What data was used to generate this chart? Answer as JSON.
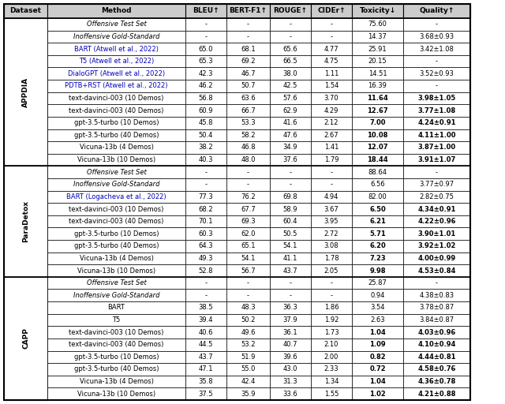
{
  "header": [
    "Dataset",
    "Method",
    "BLEU↑",
    "BERT-F1↑",
    "ROUGE↑",
    "CIDEr↑",
    "Toxicity↓",
    "Quality↑"
  ],
  "sections": [
    {
      "dataset": "APPDIA",
      "rows": [
        {
          "method": "Offensive Test Set",
          "italic": true,
          "cite": false,
          "bleu": "-",
          "bert": "-",
          "rouge": "-",
          "cider": "-",
          "toxicity": "75.60",
          "quality": "-",
          "bold_tox": false,
          "bold_qual": false
        },
        {
          "method": "Inoffensive Gold-Standard",
          "italic": true,
          "cite": false,
          "bleu": "-",
          "bert": "-",
          "rouge": "-",
          "cider": "-",
          "toxicity": "14.37",
          "quality": "3.68±0.93",
          "bold_tox": false,
          "bold_qual": false
        },
        {
          "method": "BART (Atwell et al., 2022)",
          "italic": false,
          "cite": true,
          "bleu": "65.0",
          "bert": "68.1",
          "rouge": "65.6",
          "cider": "4.77",
          "toxicity": "25.91",
          "quality": "3.42±1.08",
          "bold_tox": false,
          "bold_qual": false
        },
        {
          "method": "T5 (Atwell et al., 2022)",
          "italic": false,
          "cite": true,
          "bleu": "65.3",
          "bert": "69.2",
          "rouge": "66.5",
          "cider": "4.75",
          "toxicity": "20.15",
          "quality": "-",
          "bold_tox": false,
          "bold_qual": false
        },
        {
          "method": "DialoGPT (Atwell et al., 2022)",
          "italic": false,
          "cite": true,
          "bleu": "42.3",
          "bert": "46.7",
          "rouge": "38.0",
          "cider": "1.11",
          "toxicity": "14.51",
          "quality": "3.52±0.93",
          "bold_tox": false,
          "bold_qual": false
        },
        {
          "method": "PDTB+RST (Atwell et al., 2022)",
          "italic": false,
          "cite": true,
          "bleu": "46.2",
          "bert": "50.7",
          "rouge": "42.5",
          "cider": "1.54",
          "toxicity": "16.39",
          "quality": "-",
          "bold_tox": false,
          "bold_qual": false
        },
        {
          "method": "text-davinci-003 (10 Demos)",
          "italic": false,
          "cite": false,
          "bleu": "56.8",
          "bert": "63.6",
          "rouge": "57.6",
          "cider": "3.70",
          "toxicity": "11.64",
          "quality": "3.98±1.05",
          "bold_tox": true,
          "bold_qual": true
        },
        {
          "method": "text-davinci-003 (40 Demos)",
          "italic": false,
          "cite": false,
          "bleu": "60.9",
          "bert": "66.7",
          "rouge": "62.9",
          "cider": "4.29",
          "toxicity": "12.67",
          "quality": "3.77±1.08",
          "bold_tox": true,
          "bold_qual": true
        },
        {
          "method": "gpt-3.5-turbo (10 Demos)",
          "italic": false,
          "cite": false,
          "bleu": "45.8",
          "bert": "53.3",
          "rouge": "41.6",
          "cider": "2.12",
          "toxicity": "7.00",
          "quality": "4.24±0.91",
          "bold_tox": true,
          "bold_qual": true
        },
        {
          "method": "gpt-3.5-turbo (40 Demos)",
          "italic": false,
          "cite": false,
          "bleu": "50.4",
          "bert": "58.2",
          "rouge": "47.6",
          "cider": "2.67",
          "toxicity": "10.08",
          "quality": "4.11±1.00",
          "bold_tox": true,
          "bold_qual": true
        },
        {
          "method": "Vicuna-13b (4 Demos)",
          "italic": false,
          "cite": false,
          "bleu": "38.2",
          "bert": "46.8",
          "rouge": "34.9",
          "cider": "1.41",
          "toxicity": "12.07",
          "quality": "3.87±1.00",
          "bold_tox": true,
          "bold_qual": true
        },
        {
          "method": "Vicuna-13b (10 Demos)",
          "italic": false,
          "cite": false,
          "bleu": "40.3",
          "bert": "48.0",
          "rouge": "37.6",
          "cider": "1.79",
          "toxicity": "18.44",
          "quality": "3.91±1.07",
          "bold_tox": true,
          "bold_qual": true
        }
      ]
    },
    {
      "dataset": "ParaDetox",
      "rows": [
        {
          "method": "Offensive Test Set",
          "italic": true,
          "cite": false,
          "bleu": "-",
          "bert": "-",
          "rouge": "-",
          "cider": "-",
          "toxicity": "88.64",
          "quality": "-",
          "bold_tox": false,
          "bold_qual": false
        },
        {
          "method": "Inoffensive Gold-Standard",
          "italic": true,
          "cite": false,
          "bleu": "-",
          "bert": "-",
          "rouge": "-",
          "cider": "-",
          "toxicity": "6.56",
          "quality": "3.77±0.97",
          "bold_tox": false,
          "bold_qual": false
        },
        {
          "method": "BART (Logacheva et al., 2022)",
          "italic": false,
          "cite": true,
          "bleu": "77.3",
          "bert": "76.2",
          "rouge": "69.8",
          "cider": "4.94",
          "toxicity": "82.00",
          "quality": "2.82±0.75",
          "bold_tox": false,
          "bold_qual": false
        },
        {
          "method": "text-davinci-003 (10 Demos)",
          "italic": false,
          "cite": false,
          "bleu": "68.2",
          "bert": "67.7",
          "rouge": "58.9",
          "cider": "3.67",
          "toxicity": "6.50",
          "quality": "4.34±0.91",
          "bold_tox": true,
          "bold_qual": true
        },
        {
          "method": "text-davinci-003 (40 Demos)",
          "italic": false,
          "cite": false,
          "bleu": "70.1",
          "bert": "69.3",
          "rouge": "60.4",
          "cider": "3.95",
          "toxicity": "6.21",
          "quality": "4.22±0.96",
          "bold_tox": true,
          "bold_qual": true
        },
        {
          "method": "gpt-3.5-turbo (10 Demos)",
          "italic": false,
          "cite": false,
          "bleu": "60.3",
          "bert": "62.0",
          "rouge": "50.5",
          "cider": "2.72",
          "toxicity": "5.71",
          "quality": "3.90±1.01",
          "bold_tox": true,
          "bold_qual": true
        },
        {
          "method": "gpt-3.5-turbo (40 Demos)",
          "italic": false,
          "cite": false,
          "bleu": "64.3",
          "bert": "65.1",
          "rouge": "54.1",
          "cider": "3.08",
          "toxicity": "6.20",
          "quality": "3.92±1.02",
          "bold_tox": true,
          "bold_qual": true
        },
        {
          "method": "Vicuna-13b (4 Demos)",
          "italic": false,
          "cite": false,
          "bleu": "49.3",
          "bert": "54.1",
          "rouge": "41.1",
          "cider": "1.78",
          "toxicity": "7.23",
          "quality": "4.00±0.99",
          "bold_tox": true,
          "bold_qual": true
        },
        {
          "method": "Vicuna-13b (10 Demos)",
          "italic": false,
          "cite": false,
          "bleu": "52.8",
          "bert": "56.7",
          "rouge": "43.7",
          "cider": "2.05",
          "toxicity": "9.98",
          "quality": "4.53±0.84",
          "bold_tox": true,
          "bold_qual": true
        }
      ]
    },
    {
      "dataset": "CAPP",
      "rows": [
        {
          "method": "Offensive Test Set",
          "italic": true,
          "cite": false,
          "bleu": "-",
          "bert": "-",
          "rouge": "-",
          "cider": "-",
          "toxicity": "25.87",
          "quality": "-",
          "bold_tox": false,
          "bold_qual": false
        },
        {
          "method": "Inoffensive Gold-Standard",
          "italic": true,
          "cite": false,
          "bleu": "-",
          "bert": "-",
          "rouge": "-",
          "cider": "-",
          "toxicity": "0.94",
          "quality": "4.38±0.83",
          "bold_tox": false,
          "bold_qual": false
        },
        {
          "method": "BART",
          "italic": false,
          "cite": false,
          "bleu": "38.5",
          "bert": "48.3",
          "rouge": "36.3",
          "cider": "1.86",
          "toxicity": "3.54",
          "quality": "3.78±0.87",
          "bold_tox": false,
          "bold_qual": false
        },
        {
          "method": "T5",
          "italic": false,
          "cite": false,
          "bleu": "39.4",
          "bert": "50.2",
          "rouge": "37.9",
          "cider": "1.92",
          "toxicity": "2.63",
          "quality": "3.84±0.87",
          "bold_tox": false,
          "bold_qual": false
        },
        {
          "method": "text-davinci-003 (10 Demos)",
          "italic": false,
          "cite": false,
          "bleu": "40.6",
          "bert": "49.6",
          "rouge": "36.1",
          "cider": "1.73",
          "toxicity": "1.04",
          "quality": "4.03±0.96",
          "bold_tox": true,
          "bold_qual": true
        },
        {
          "method": "text-davinci-003 (40 Demos)",
          "italic": false,
          "cite": false,
          "bleu": "44.5",
          "bert": "53.2",
          "rouge": "40.7",
          "cider": "2.10",
          "toxicity": "1.09",
          "quality": "4.10±0.94",
          "bold_tox": true,
          "bold_qual": true
        },
        {
          "method": "gpt-3.5-turbo (10 Demos)",
          "italic": false,
          "cite": false,
          "bleu": "43.7",
          "bert": "51.9",
          "rouge": "39.6",
          "cider": "2.00",
          "toxicity": "0.82",
          "quality": "4.44±0.81",
          "bold_tox": true,
          "bold_qual": true
        },
        {
          "method": "gpt-3.5-turbo (40 Demos)",
          "italic": false,
          "cite": false,
          "bleu": "47.1",
          "bert": "55.0",
          "rouge": "43.0",
          "cider": "2.33",
          "toxicity": "0.72",
          "quality": "4.58±0.76",
          "bold_tox": true,
          "bold_qual": true
        },
        {
          "method": "Vicuna-13b (4 Demos)",
          "italic": false,
          "cite": false,
          "bleu": "35.8",
          "bert": "42.4",
          "rouge": "31.3",
          "cider": "1.34",
          "toxicity": "1.04",
          "quality": "4.36±0.78",
          "bold_tox": true,
          "bold_qual": true
        },
        {
          "method": "Vicuna-13b (10 Demos)",
          "italic": false,
          "cite": false,
          "bleu": "37.5",
          "bert": "35.9",
          "rouge": "33.6",
          "cider": "1.55",
          "toxicity": "1.02",
          "quality": "4.21±0.88",
          "bold_tox": true,
          "bold_qual": true
        }
      ]
    }
  ],
  "cite_color": "#0000BB",
  "header_bg": "#CCCCCC",
  "white_bg": "#FFFFFF",
  "border_color": "#000000",
  "fig_width": 6.4,
  "fig_height": 5.12,
  "dpi": 100
}
